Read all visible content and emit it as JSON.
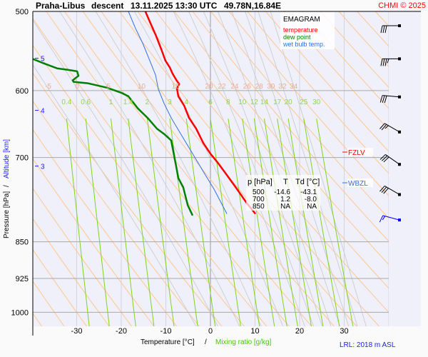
{
  "title": {
    "station": "Praha-Libus",
    "phase": "descent",
    "datetime": "13.11.2025 13:30 UTC",
    "coords": "49.78N,16.84E",
    "copyright": "CHMI © 2025"
  },
  "legend": {
    "title": "EMAGRAM",
    "items": [
      {
        "label": "temperature",
        "color": "#ff0000"
      },
      {
        "label": "dew point",
        "color": "#008000"
      },
      {
        "label": "wet bulb temp.",
        "color": "#3070e0"
      }
    ]
  },
  "markers": {
    "fzlv": {
      "label": "FZLV",
      "color": "#ff0000",
      "pressure": 697
    },
    "wbzl": {
      "label": "WBZL",
      "color": "#3070e0",
      "pressure": 747
    }
  },
  "footer": {
    "lrl": "LRL: 2018 m ASL"
  },
  "table": {
    "headers": [
      "p [hPa]",
      "T",
      "Td [°C]"
    ],
    "rows": [
      [
        "500",
        "-14.6",
        "-43.1"
      ],
      [
        "700",
        "1.2",
        "-8.0"
      ],
      [
        "850",
        "NA",
        "NA"
      ]
    ]
  },
  "chart_data": {
    "type": "line",
    "title": "EMAGRAM",
    "xlabel": "Temperature [°C]",
    "xlabel_sep": "/",
    "xlabel2": "Mixing ratio [g/kg]",
    "ylabel": "Pressure [hPa]",
    "ylabel_sep": "/",
    "ylabel2": "Altitude [km]",
    "xlim": [
      -40,
      40
    ],
    "ylim": [
      1050,
      500
    ],
    "yscale": "log",
    "x_ticks": [
      "-30",
      "-20",
      "-10",
      "0",
      "10",
      "20",
      "30"
    ],
    "y_ticks": [
      "500",
      "600",
      "700",
      "850",
      "925",
      "1000"
    ],
    "altitude_ticks": [
      {
        "km": "5",
        "p": 557
      },
      {
        "km": "4",
        "p": 628
      },
      {
        "km": "3",
        "p": 714
      }
    ],
    "moist_adiabat_labels": [
      "-5",
      "0",
      "5",
      "10",
      "15",
      "20",
      "22",
      "24",
      "26",
      "28",
      "30",
      "32",
      "34"
    ],
    "mixing_ratio_labels": [
      "0.4",
      "0.6",
      "1",
      "1.4",
      "2",
      "3",
      "4",
      "6",
      "8",
      "10",
      "12",
      "14",
      "17",
      "20",
      "25",
      "30"
    ],
    "series": [
      {
        "name": "temperature",
        "color": "#ff0000",
        "points": [
          [
            -14.6,
            500
          ],
          [
            -13.6,
            512
          ],
          [
            -12.2,
            529
          ],
          [
            -11.0,
            546
          ],
          [
            -10.1,
            560
          ],
          [
            -9.1,
            569
          ],
          [
            -8.5,
            577
          ],
          [
            -7.5,
            587
          ],
          [
            -7.0,
            591
          ],
          [
            -7.5,
            597
          ],
          [
            -7.2,
            608
          ],
          [
            -5.9,
            621
          ],
          [
            -4.8,
            639
          ],
          [
            -3.2,
            655
          ],
          [
            -1.6,
            677
          ],
          [
            0.0,
            694
          ],
          [
            1.6,
            708
          ],
          [
            3.7,
            729
          ],
          [
            5.6,
            749
          ],
          [
            8.0,
            776
          ],
          [
            10.1,
            797
          ]
        ]
      },
      {
        "name": "dew point",
        "color": "#008000",
        "points": [
          [
            -39.8,
            558
          ],
          [
            -37.6,
            563
          ],
          [
            -34.4,
            570
          ],
          [
            -32.0,
            572
          ],
          [
            -29.9,
            574
          ],
          [
            -29.6,
            580
          ],
          [
            -30.9,
            586
          ],
          [
            -30.7,
            588
          ],
          [
            -27.5,
            590
          ],
          [
            -23.2,
            596
          ],
          [
            -20.0,
            603
          ],
          [
            -18.4,
            608
          ],
          [
            -16.3,
            625
          ],
          [
            -14.1,
            639
          ],
          [
            -12.0,
            655
          ],
          [
            -10.4,
            663
          ],
          [
            -8.8,
            673
          ],
          [
            -8.3,
            691
          ],
          [
            -7.7,
            714
          ],
          [
            -7.2,
            734
          ],
          [
            -6.1,
            750
          ],
          [
            -5.1,
            781
          ],
          [
            -4.0,
            800
          ]
        ]
      },
      {
        "name": "wet bulb temp.",
        "color": "#3070e0",
        "points": [
          [
            -18.4,
            500
          ],
          [
            -16.8,
            520
          ],
          [
            -15.2,
            538
          ],
          [
            -13.6,
            560
          ],
          [
            -12.3,
            579
          ],
          [
            -11.7,
            598
          ],
          [
            -10.4,
            618
          ],
          [
            -8.8,
            639
          ],
          [
            -6.4,
            666
          ],
          [
            -4.0,
            694
          ],
          [
            -1.6,
            723
          ],
          [
            0.8,
            753
          ],
          [
            3.7,
            797
          ]
        ]
      }
    ],
    "wind": [
      {
        "p": 505,
        "dir": 270,
        "kt": 30,
        "color": "#000000"
      },
      {
        "p": 545,
        "dir": 270,
        "kt": 35,
        "color": "#000000"
      },
      {
        "p": 595,
        "dir": 275,
        "kt": 30,
        "color": "#000000"
      },
      {
        "p": 645,
        "dir": 300,
        "kt": 25,
        "color": "#000000"
      },
      {
        "p": 695,
        "dir": 305,
        "kt": 30,
        "color": "#000000"
      },
      {
        "p": 745,
        "dir": 300,
        "kt": 30,
        "color": "#000000"
      },
      {
        "p": 790,
        "dir": 285,
        "kt": 15,
        "color": "#0000ff"
      }
    ]
  }
}
